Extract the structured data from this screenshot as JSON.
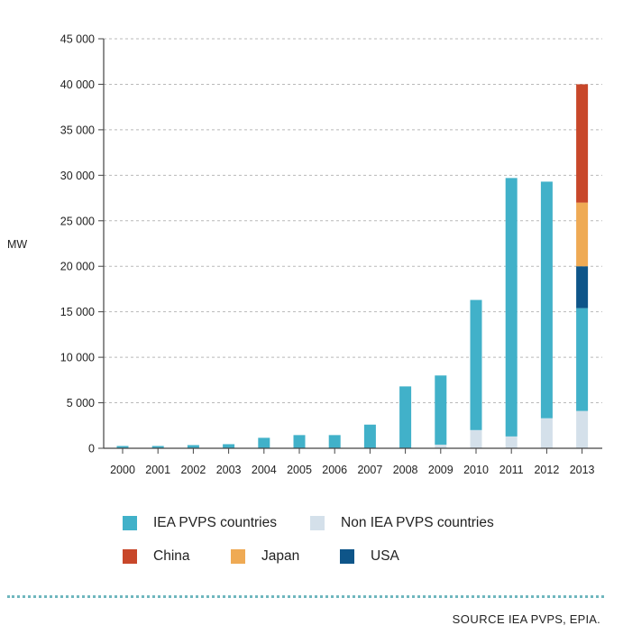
{
  "colors": {
    "iea": "#41b1c9",
    "non_iea": "#d4e0ea",
    "china": "#c8472a",
    "japan": "#efaa54",
    "usa": "#0e5589",
    "grid": "#b9b9b9",
    "axis": "#444444"
  },
  "chart_data": {
    "type": "bar",
    "stacked": true,
    "ylabel": "MW",
    "xlabel": "",
    "title": "",
    "ylim": [
      0,
      45000
    ],
    "yticks": [
      0,
      5000,
      10000,
      15000,
      20000,
      25000,
      30000,
      35000,
      40000,
      45000
    ],
    "ytick_labels": [
      "0",
      "5 000",
      "10 000",
      "15 000",
      "20 000",
      "25 000",
      "30 000",
      "35 000",
      "40 000",
      "45 000"
    ],
    "grid": true,
    "legend_position": "bottom",
    "categories": [
      "2000",
      "2001",
      "2002",
      "2003",
      "2004",
      "2005",
      "2006",
      "2007",
      "2008",
      "2009",
      "2010",
      "2011",
      "2012",
      "2013"
    ],
    "series": [
      {
        "name": "Non IEA PVPS countries",
        "color_key": "non_iea",
        "values": [
          0,
          0,
          0,
          0,
          0,
          0,
          0,
          0,
          0,
          400,
          2000,
          1300,
          3300,
          4100
        ]
      },
      {
        "name": "IEA PVPS countries",
        "color_key": "iea",
        "values": [
          250,
          250,
          350,
          450,
          1150,
          1450,
          1450,
          2600,
          6800,
          7600,
          14300,
          28400,
          26000,
          11300
        ]
      },
      {
        "name": "USA",
        "color_key": "usa",
        "values": [
          0,
          0,
          0,
          0,
          0,
          0,
          0,
          0,
          0,
          0,
          0,
          0,
          0,
          4600
        ]
      },
      {
        "name": "Japan",
        "color_key": "japan",
        "values": [
          0,
          0,
          0,
          0,
          0,
          0,
          0,
          0,
          0,
          0,
          0,
          0,
          0,
          7000
        ]
      },
      {
        "name": "China",
        "color_key": "china",
        "values": [
          0,
          0,
          0,
          0,
          0,
          0,
          0,
          0,
          0,
          0,
          0,
          0,
          0,
          13000
        ]
      }
    ]
  },
  "legend": {
    "items": [
      {
        "label": "IEA PVPS countries",
        "color_key": "iea"
      },
      {
        "label": "Non IEA PVPS countries",
        "color_key": "non_iea"
      },
      {
        "label": "China",
        "color_key": "china"
      },
      {
        "label": "Japan",
        "color_key": "japan"
      },
      {
        "label": "USA",
        "color_key": "usa"
      }
    ]
  },
  "source": {
    "key": "SOURCE",
    "text": "IEA PVPS, EPIA."
  }
}
